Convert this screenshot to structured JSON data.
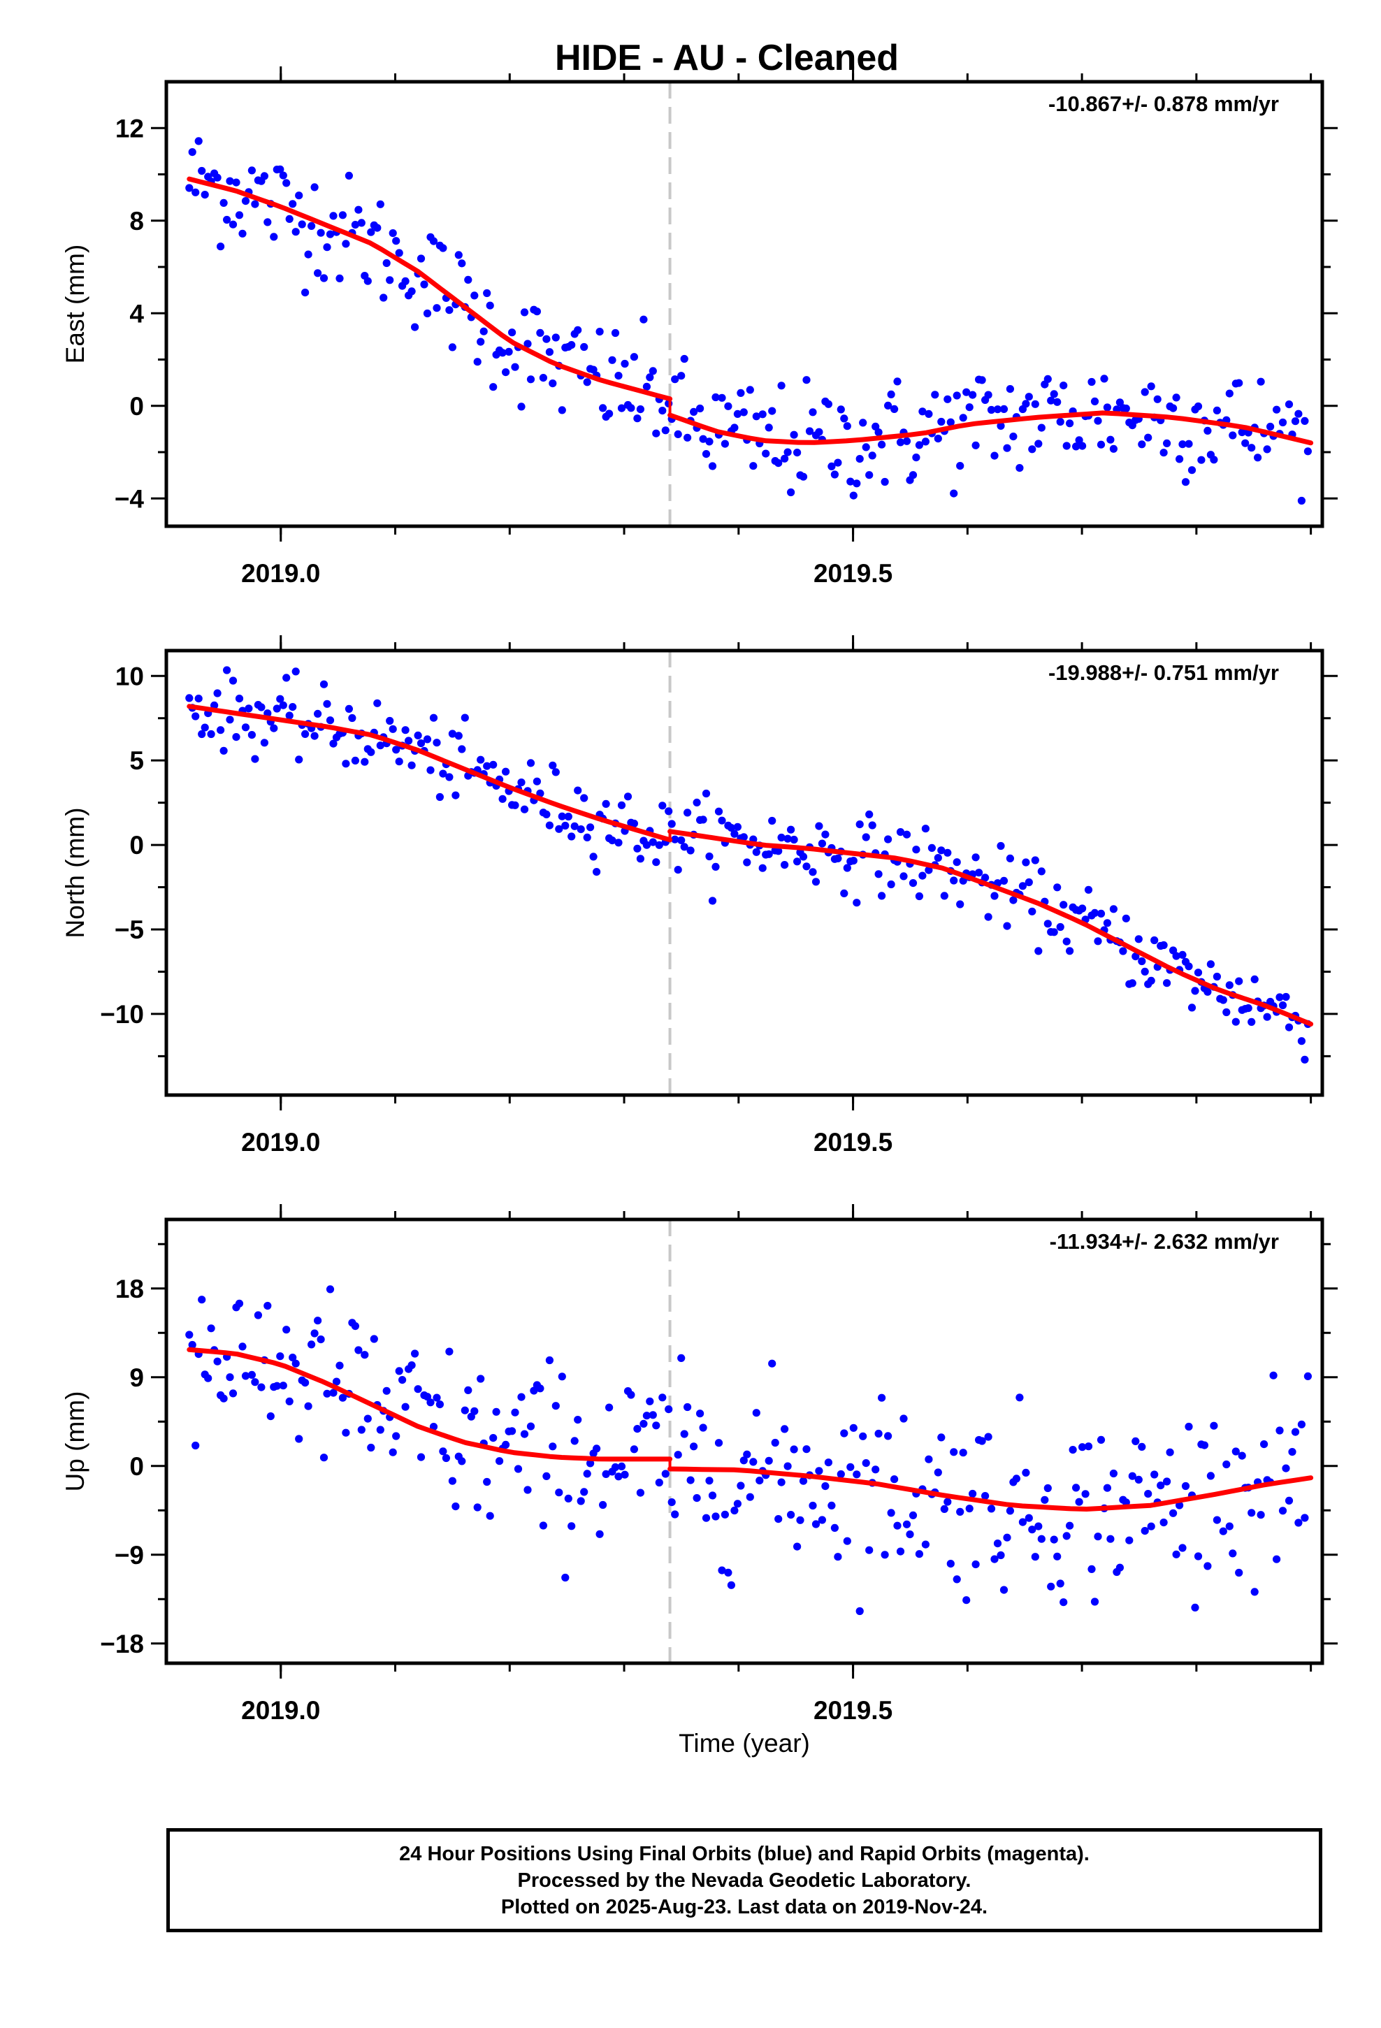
{
  "title": "HIDE  - AU - Cleaned",
  "colors": {
    "data": "#0000ff",
    "fit": "#ff0000",
    "break": "#c8c8c8",
    "frame": "#000000"
  },
  "footer": {
    "line1": "24 Hour Positions Using Final Orbits (blue) and Rapid Orbits (magenta).",
    "line2": "Processed by the Nevada Geodetic Laboratory.",
    "line3": "Plotted on 2025-Aug-23. Last data on 2019-Nov-24."
  },
  "chart_data": [
    {
      "type": "scatter",
      "ylabel": "East (mm)",
      "xlabel": "",
      "rate_label": "-10.867+/- 0.878 mm/yr",
      "xlim": [
        2018.9,
        2019.91
      ],
      "ylim": [
        -5.2,
        14.0
      ],
      "yticks": [
        12,
        8,
        4,
        0,
        -4
      ],
      "ytick_labels": [
        "12",
        "8",
        "4",
        "0",
        "−4"
      ],
      "xticks": [
        2019.0,
        2019.5
      ],
      "xtick_labels": [
        "2019.0",
        "2019.5"
      ],
      "break_x": 2019.34,
      "fit_before": [
        [
          2018.92,
          9.8
        ],
        [
          2018.96,
          9.3
        ],
        [
          2019.0,
          8.6
        ],
        [
          2019.04,
          7.8
        ],
        [
          2019.08,
          7.0
        ],
        [
          2019.12,
          5.8
        ],
        [
          2019.16,
          4.3
        ],
        [
          2019.2,
          2.8
        ],
        [
          2019.24,
          1.8
        ],
        [
          2019.28,
          1.1
        ],
        [
          2019.34,
          0.3
        ]
      ],
      "fit_after": [
        [
          2019.34,
          -0.4
        ],
        [
          2019.38,
          -1.1
        ],
        [
          2019.42,
          -1.5
        ],
        [
          2019.46,
          -1.6
        ],
        [
          2019.5,
          -1.5
        ],
        [
          2019.56,
          -1.2
        ],
        [
          2019.6,
          -0.8
        ],
        [
          2019.66,
          -0.5
        ],
        [
          2019.72,
          -0.3
        ],
        [
          2019.78,
          -0.5
        ],
        [
          2019.84,
          -0.9
        ],
        [
          2019.9,
          -1.6
        ]
      ],
      "fit_points": 40,
      "noise": 1.25
    },
    {
      "type": "scatter",
      "ylabel": "North (mm)",
      "xlabel": "",
      "rate_label": "-19.988+/- 0.751 mm/yr",
      "xlim": [
        2018.9,
        2019.91
      ],
      "ylim": [
        -14.8,
        11.5
      ],
      "yticks": [
        10,
        5,
        0,
        -5,
        -10
      ],
      "ytick_labels": [
        "10",
        "5",
        "0",
        "−5",
        "−10"
      ],
      "xticks": [
        2019.0,
        2019.5
      ],
      "xtick_labels": [
        "2019.0",
        "2019.5"
      ],
      "break_x": 2019.34,
      "fit_before": [
        [
          2018.92,
          8.2
        ],
        [
          2018.96,
          7.8
        ],
        [
          2019.0,
          7.4
        ],
        [
          2019.04,
          7.0
        ],
        [
          2019.08,
          6.5
        ],
        [
          2019.12,
          5.6
        ],
        [
          2019.16,
          4.5
        ],
        [
          2019.2,
          3.4
        ],
        [
          2019.24,
          2.4
        ],
        [
          2019.28,
          1.5
        ],
        [
          2019.34,
          0.3
        ]
      ],
      "fit_after": [
        [
          2019.34,
          0.8
        ],
        [
          2019.38,
          0.4
        ],
        [
          2019.42,
          0.0
        ],
        [
          2019.46,
          -0.2
        ],
        [
          2019.5,
          -0.5
        ],
        [
          2019.54,
          -0.8
        ],
        [
          2019.58,
          -1.4
        ],
        [
          2019.62,
          -2.4
        ],
        [
          2019.66,
          -3.4
        ],
        [
          2019.7,
          -4.6
        ],
        [
          2019.74,
          -6.0
        ],
        [
          2019.78,
          -7.4
        ],
        [
          2019.82,
          -8.6
        ],
        [
          2019.86,
          -9.5
        ],
        [
          2019.9,
          -10.6
        ]
      ],
      "fit_points": 40,
      "noise": 1.1
    },
    {
      "type": "scatter",
      "ylabel": "Up (mm)",
      "xlabel": "Time (year)",
      "rate_label": "-11.934+/- 2.632 mm/yr",
      "xlim": [
        2018.9,
        2019.91
      ],
      "ylim": [
        -20.0,
        25.0
      ],
      "yticks": [
        18,
        9,
        0,
        -9,
        -18
      ],
      "ytick_labels": [
        "18",
        "9",
        "0",
        "−9",
        "−18"
      ],
      "xticks": [
        2019.0,
        2019.5
      ],
      "xtick_labels": [
        "2019.0",
        "2019.5"
      ],
      "break_x": 2019.34,
      "fit_before": [
        [
          2018.92,
          11.8
        ],
        [
          2018.96,
          11.4
        ],
        [
          2019.0,
          10.3
        ],
        [
          2019.04,
          8.4
        ],
        [
          2019.08,
          6.2
        ],
        [
          2019.12,
          4.0
        ],
        [
          2019.16,
          2.4
        ],
        [
          2019.2,
          1.4
        ],
        [
          2019.24,
          0.9
        ],
        [
          2019.28,
          0.7
        ],
        [
          2019.34,
          0.7
        ]
      ],
      "fit_after": [
        [
          2019.34,
          -0.3
        ],
        [
          2019.4,
          -0.4
        ],
        [
          2019.46,
          -1.0
        ],
        [
          2019.52,
          -1.8
        ],
        [
          2019.58,
          -3.0
        ],
        [
          2019.64,
          -4.0
        ],
        [
          2019.7,
          -4.4
        ],
        [
          2019.76,
          -4.0
        ],
        [
          2019.82,
          -2.8
        ],
        [
          2019.86,
          -1.9
        ],
        [
          2019.9,
          -1.2
        ]
      ],
      "fit_points": 40,
      "noise": 4.6
    }
  ]
}
